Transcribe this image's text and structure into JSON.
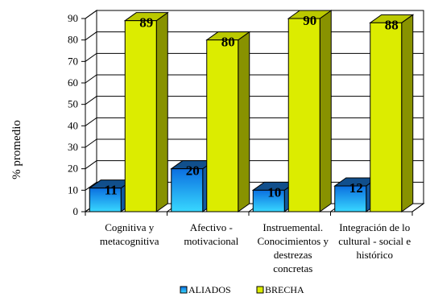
{
  "chart_data": {
    "type": "bar",
    "title": "",
    "xlabel": "",
    "ylabel": "% promedio",
    "ylim": [
      0,
      90
    ],
    "yticks": [
      0,
      10,
      20,
      30,
      40,
      50,
      60,
      70,
      80,
      90
    ],
    "grid": true,
    "legend": "bottom",
    "categories": [
      [
        "Cognitiva y",
        "metacognitiva"
      ],
      [
        "Afectivo -",
        "motivacional"
      ],
      [
        "Instruemental.",
        "Conocimientos y",
        "destrezas",
        "concretas"
      ],
      [
        "Integración de lo",
        "cultural - social e",
        "histórico"
      ]
    ],
    "series": [
      {
        "name": "ALIADOS",
        "values": [
          11,
          20,
          10,
          12
        ],
        "color": "#1e8fff"
      },
      {
        "name": "BRECHA",
        "values": [
          89,
          80,
          90,
          88
        ],
        "color": "#dcec00"
      }
    ]
  }
}
